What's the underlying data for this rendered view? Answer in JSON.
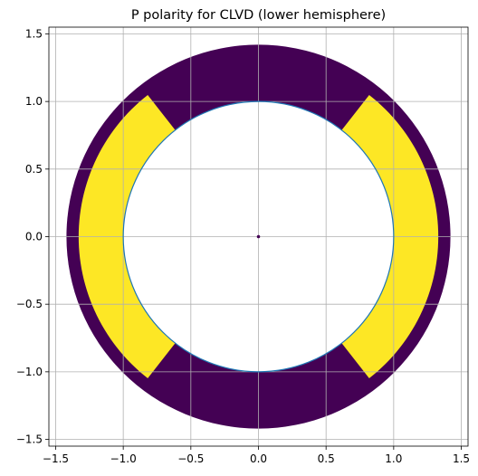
{
  "chart_data": {
    "type": "scatter",
    "title": "P polarity for CLVD (lower hemisphere)",
    "xlabel": "",
    "ylabel": "",
    "xlim": [
      -1.55,
      1.55
    ],
    "ylim": [
      -1.55,
      1.55
    ],
    "grid": true,
    "legend": "none",
    "aspect": "equal",
    "xticks": [
      -1.5,
      -1.0,
      -0.5,
      0.0,
      0.5,
      1.0,
      1.5
    ],
    "yticks": [
      -1.5,
      -1.0,
      -0.5,
      0.0,
      0.5,
      1.0,
      1.5
    ],
    "xtick_labels": [
      "−1.5",
      "−1.0",
      "−0.5",
      "0.0",
      "0.5",
      "1.0",
      "1.5"
    ],
    "ytick_labels": [
      "−1.5",
      "−1.0",
      "−0.5",
      "0.0",
      "0.5",
      "1.0",
      "1.5"
    ],
    "polarity_region": {
      "outer_radius": 1.42,
      "inner_radius": 1.0,
      "negative_color": "#440154",
      "positive_color": "#fde725",
      "positive_lobes": [
        {
          "side": "right",
          "theta_range_deg": [
            -52,
            52
          ],
          "r_range": [
            1.0,
            1.33
          ]
        },
        {
          "side": "left",
          "theta_range_deg": [
            128,
            232
          ],
          "r_range": [
            1.0,
            1.33
          ]
        }
      ]
    },
    "unit_circle": {
      "radius": 1.0,
      "color": "#1f77b4"
    },
    "center_point": {
      "x": 0.0,
      "y": 0.0,
      "color": "#440154"
    }
  }
}
